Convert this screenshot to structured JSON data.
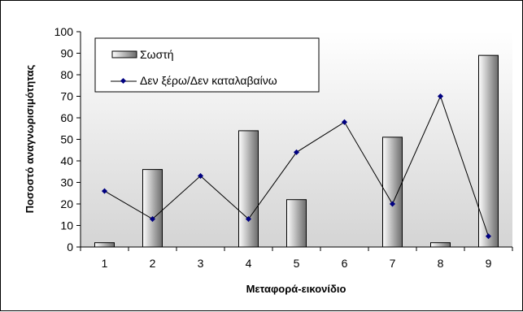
{
  "chart_data": {
    "type": "bar",
    "categories": [
      "1",
      "2",
      "3",
      "4",
      "5",
      "6",
      "7",
      "8",
      "9"
    ],
    "series": [
      {
        "name": "Σωστή",
        "type": "bar",
        "values": [
          2,
          36,
          0,
          54,
          22,
          0,
          51,
          2,
          89
        ]
      },
      {
        "name": "Δεν ξέρω/Δεν καταλαβαίνω",
        "type": "line",
        "values": [
          26,
          13,
          33,
          13,
          44,
          58,
          20,
          70,
          5
        ]
      }
    ],
    "xlabel": "Μεταφορά-εικονίδιο",
    "ylabel": "Ποσοστό αναγνωρισιμότητας",
    "ylim": [
      0,
      100
    ],
    "yticks": [
      0,
      10,
      20,
      30,
      40,
      50,
      60,
      70,
      80,
      90,
      100
    ],
    "legend_position": "top-left",
    "grid": false,
    "colors": {
      "bar_light": "#ffffff",
      "bar_dark": "#6b6b6b",
      "line": "#000000",
      "marker": "#000080",
      "plot_bg_top": "#ffffff",
      "plot_bg_bottom": "#d4d4d4"
    }
  }
}
